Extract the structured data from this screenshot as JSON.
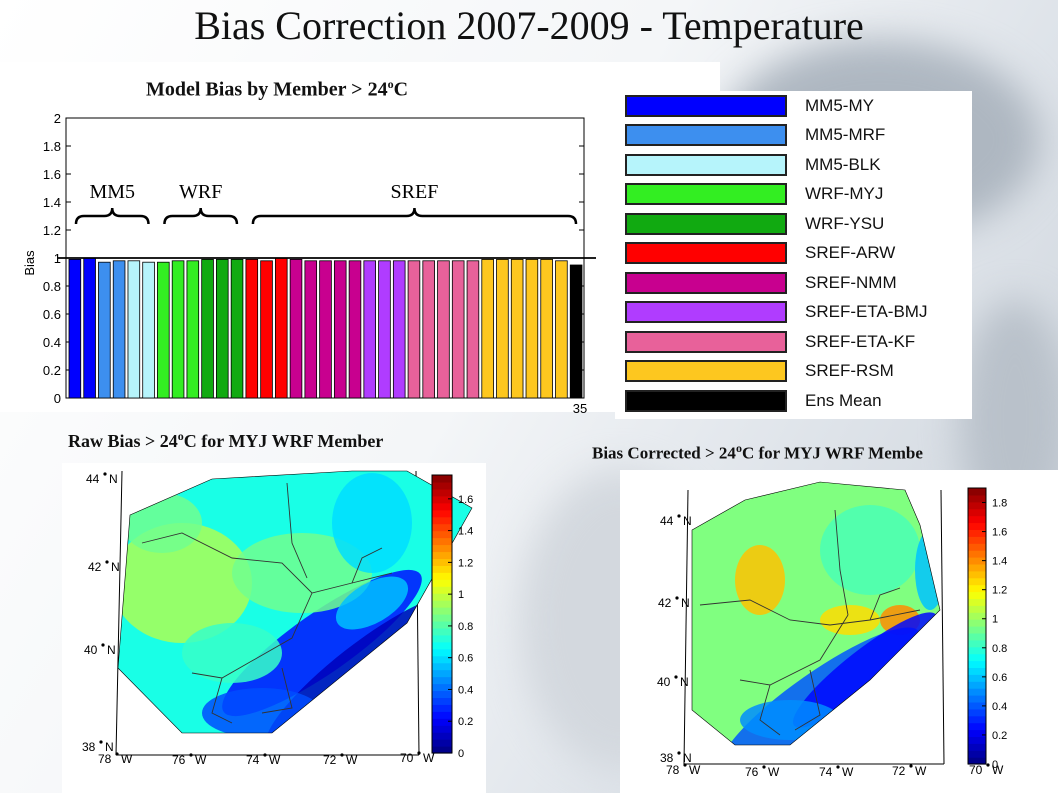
{
  "title": "Bias Correction 2007-2009 - Temperature",
  "bias_chart_title": "Model Bias by Member > 24",
  "bias_chart_title_unit": "C",
  "raw_map_title": "Raw Bias > 24",
  "raw_map_title_suffix": "C for MYJ WRF Member",
  "corr_map_title": "Bias Corrected > 24",
  "corr_map_title_suffix": "C for MYJ WRF Membe",
  "degree_sup": "o",
  "chart_data": [
    {
      "type": "bar",
      "ylabel": "Bias",
      "ylim": [
        0,
        2
      ],
      "yticks": [
        "0",
        "0.2",
        "0.4",
        "0.6",
        "0.8",
        "1",
        "1.2",
        "1.4",
        "1.6",
        "1.8",
        "2"
      ],
      "last_x_label": "35",
      "reference_line": 1.0,
      "group_labels": [
        "MM5",
        "WRF",
        "SREF"
      ],
      "values": [
        0.99,
        1.0,
        0.97,
        0.98,
        0.98,
        0.97,
        0.97,
        0.98,
        0.98,
        0.99,
        0.99,
        0.99,
        0.99,
        0.98,
        1.0,
        0.99,
        0.98,
        0.98,
        0.98,
        0.98,
        0.98,
        0.98,
        0.98,
        0.98,
        0.98,
        0.98,
        0.98,
        0.98,
        0.99,
        0.99,
        0.99,
        0.99,
        0.99,
        0.98,
        0.95
      ],
      "members": [
        "MM5-MY",
        "MM5-MY",
        "MM5-MRF",
        "MM5-MRF",
        "MM5-BLK",
        "MM5-BLK",
        "WRF-MYJ",
        "WRF-MYJ",
        "WRF-MYJ",
        "WRF-YSU",
        "WRF-YSU",
        "WRF-YSU",
        "SREF-ARW",
        "SREF-ARW",
        "SREF-ARW",
        "SREF-NMM",
        "SREF-NMM",
        "SREF-NMM",
        "SREF-NMM",
        "SREF-NMM",
        "SREF-ETA-BMJ",
        "SREF-ETA-BMJ",
        "SREF-ETA-BMJ",
        "SREF-ETA-KF",
        "SREF-ETA-KF",
        "SREF-ETA-KF",
        "SREF-ETA-KF",
        "SREF-ETA-KF",
        "SREF-RSM",
        "SREF-RSM",
        "SREF-RSM",
        "SREF-RSM",
        "SREF-RSM",
        "SREF-RSM",
        "Ens Mean"
      ]
    },
    {
      "type": "heatmap",
      "colorbar_ticks": [
        "0",
        "0.2",
        "0.4",
        "0.6",
        "0.8",
        "1",
        "1.2",
        "1.4",
        "1.6"
      ],
      "colorbar_range": [
        0,
        1.75
      ],
      "lat_labels": [
        "44",
        "42",
        "40",
        "38"
      ],
      "lat_suffix": "N",
      "lon_labels": [
        "78",
        "76",
        "74",
        "72",
        "70"
      ],
      "lon_suffix": "W"
    },
    {
      "type": "heatmap",
      "colorbar_ticks": [
        "0",
        "0.2",
        "0.4",
        "0.6",
        "0.8",
        "1",
        "1.2",
        "1.4",
        "1.6",
        "1.8"
      ],
      "colorbar_range": [
        0,
        1.9
      ],
      "lat_labels": [
        "44",
        "42",
        "40",
        "38"
      ],
      "lat_suffix": "N",
      "lon_labels": [
        "78",
        "76",
        "74",
        "72",
        "70"
      ],
      "lon_suffix": "W"
    }
  ],
  "legend": [
    {
      "label": "MM5-MY",
      "color": "#0000ff"
    },
    {
      "label": "MM5-MRF",
      "color": "#3d8fef"
    },
    {
      "label": "MM5-BLK",
      "color": "#b6f4fb"
    },
    {
      "label": "WRF-MYJ",
      "color": "#33ee22"
    },
    {
      "label": "WRF-YSU",
      "color": "#11aa11"
    },
    {
      "label": "SREF-ARW",
      "color": "#ff0000"
    },
    {
      "label": "SREF-NMM",
      "color": "#c8008f"
    },
    {
      "label": "SREF-ETA-BMJ",
      "color": "#b03cff"
    },
    {
      "label": "SREF-ETA-KF",
      "color": "#e8619a"
    },
    {
      "label": "SREF-RSM",
      "color": "#fdc71f"
    },
    {
      "label": "Ens Mean",
      "color": "#000000"
    }
  ]
}
